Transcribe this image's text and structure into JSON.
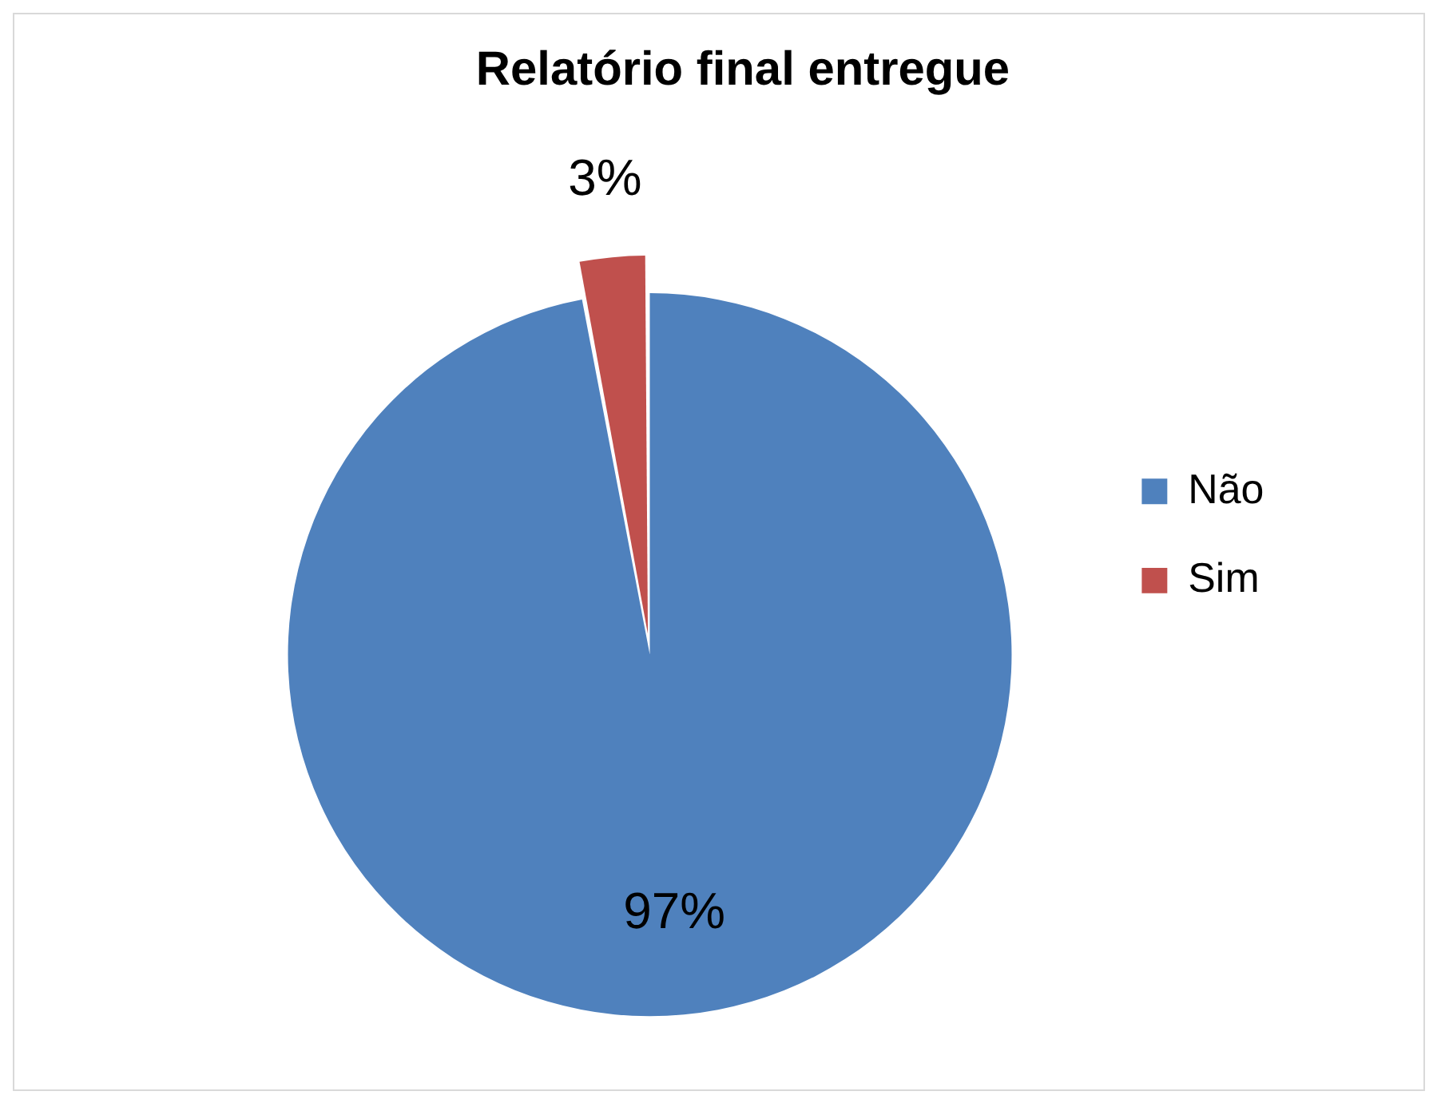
{
  "chart_data": {
    "type": "pie",
    "title": "Relatório final entregue",
    "categories": [
      "Não",
      "Sim"
    ],
    "values": [
      97,
      3
    ],
    "colors": [
      "#4f81bd",
      "#c0504d"
    ],
    "value_labels": [
      "97%",
      "3%"
    ],
    "legend": "right"
  }
}
